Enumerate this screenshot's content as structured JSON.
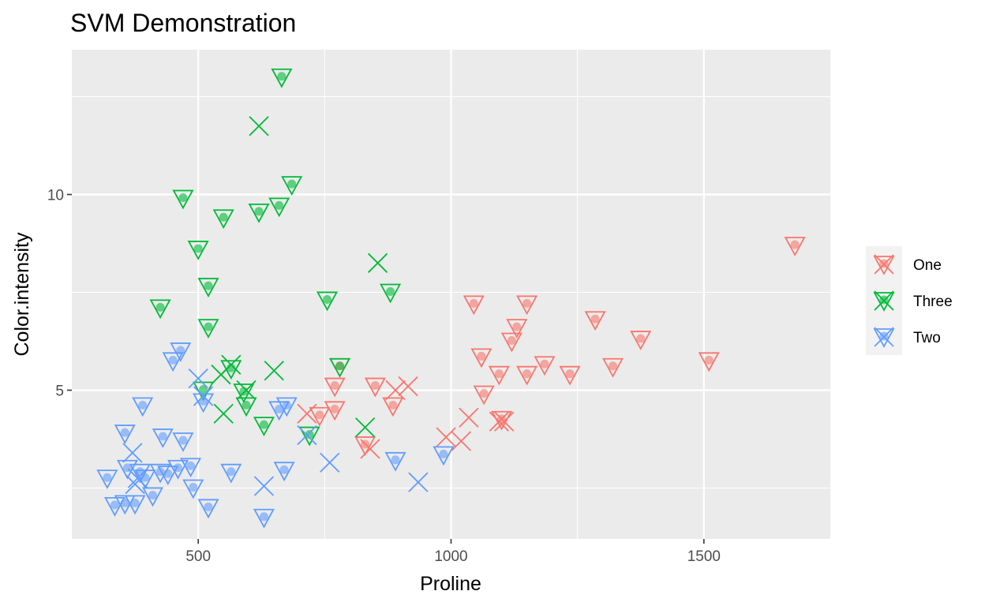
{
  "chart_data": {
    "type": "scatter",
    "title": "SVM Demonstration",
    "xlabel": "Proline",
    "ylabel": "Color.intensity",
    "xlim": [
      250,
      1750
    ],
    "ylim": [
      1.2,
      13.7
    ],
    "x_ticks": [
      500,
      1000,
      1500
    ],
    "y_ticks": [
      5,
      10
    ],
    "x_tick_labels": [
      "500",
      "1000",
      "1500"
    ],
    "y_tick_labels": [
      "5",
      "10"
    ],
    "grid": true,
    "legend_position": "right",
    "legend": [
      "One",
      "Three",
      "Two"
    ],
    "colors": {
      "One": "#F8766D",
      "Three": "#00BA38",
      "Two": "#619CFF"
    },
    "series": [
      {
        "name": "One",
        "color": "#F8766D",
        "support_vectors": [
          [
            1680,
            8.7
          ],
          [
            1510,
            5.75
          ],
          [
            1375,
            6.3
          ],
          [
            1320,
            5.6
          ],
          [
            1285,
            6.8
          ],
          [
            1235,
            5.4
          ],
          [
            1185,
            5.65
          ],
          [
            1150,
            7.2
          ],
          [
            1150,
            5.4
          ],
          [
            1130,
            6.6
          ],
          [
            1120,
            6.25
          ],
          [
            1095,
            5.4
          ],
          [
            1065,
            4.9
          ],
          [
            1060,
            5.85
          ],
          [
            1045,
            7.2
          ],
          [
            1100,
            4.25
          ],
          [
            885,
            4.6
          ],
          [
            850,
            5.1
          ],
          [
            780,
            5.6
          ],
          [
            770,
            5.1
          ],
          [
            770,
            4.5
          ],
          [
            740,
            4.35
          ],
          [
            830,
            3.6
          ]
        ],
        "others": [
          [
            1095,
            4.2
          ],
          [
            1105,
            4.2
          ],
          [
            1035,
            4.3
          ],
          [
            1020,
            3.7
          ],
          [
            990,
            3.8
          ],
          [
            915,
            5.1
          ],
          [
            890,
            5.0
          ],
          [
            840,
            3.5
          ],
          [
            715,
            4.4
          ]
        ]
      },
      {
        "name": "Three",
        "color": "#00BA38",
        "support_vectors": [
          [
            665,
            13.0
          ],
          [
            685,
            10.25
          ],
          [
            660,
            9.7
          ],
          [
            620,
            9.55
          ],
          [
            550,
            9.4
          ],
          [
            470,
            9.9
          ],
          [
            500,
            8.6
          ],
          [
            520,
            7.65
          ],
          [
            425,
            7.1
          ],
          [
            520,
            6.6
          ],
          [
            755,
            7.3
          ],
          [
            880,
            7.5
          ],
          [
            780,
            5.6
          ],
          [
            510,
            5.0
          ],
          [
            565,
            5.55
          ],
          [
            590,
            4.95
          ],
          [
            595,
            4.6
          ],
          [
            630,
            4.1
          ],
          [
            720,
            3.85
          ]
        ],
        "others": [
          [
            620,
            11.75
          ],
          [
            855,
            8.25
          ],
          [
            545,
            5.4
          ],
          [
            565,
            5.65
          ],
          [
            650,
            5.5
          ],
          [
            595,
            5.0
          ],
          [
            550,
            4.4
          ],
          [
            830,
            4.05
          ]
        ]
      },
      {
        "name": "Two",
        "color": "#619CFF",
        "support_vectors": [
          [
            465,
            6.0
          ],
          [
            450,
            5.75
          ],
          [
            390,
            4.6
          ],
          [
            355,
            3.9
          ],
          [
            430,
            3.8
          ],
          [
            470,
            3.7
          ],
          [
            510,
            4.7
          ],
          [
            660,
            4.5
          ],
          [
            675,
            4.6
          ],
          [
            985,
            3.35
          ],
          [
            890,
            3.2
          ],
          [
            320,
            2.75
          ],
          [
            360,
            3.0
          ],
          [
            385,
            2.9
          ],
          [
            395,
            2.75
          ],
          [
            425,
            2.9
          ],
          [
            440,
            2.85
          ],
          [
            460,
            3.0
          ],
          [
            485,
            3.05
          ],
          [
            565,
            2.9
          ],
          [
            670,
            2.95
          ],
          [
            335,
            2.05
          ],
          [
            355,
            2.1
          ],
          [
            375,
            2.1
          ],
          [
            410,
            2.3
          ],
          [
            490,
            2.5
          ],
          [
            520,
            2.0
          ],
          [
            630,
            1.75
          ]
        ],
        "others": [
          [
            500,
            5.3
          ],
          [
            510,
            4.85
          ],
          [
            370,
            3.4
          ],
          [
            380,
            2.75
          ],
          [
            375,
            2.6
          ],
          [
            760,
            3.15
          ],
          [
            715,
            3.85
          ],
          [
            630,
            2.55
          ],
          [
            935,
            2.65
          ]
        ]
      }
    ]
  }
}
